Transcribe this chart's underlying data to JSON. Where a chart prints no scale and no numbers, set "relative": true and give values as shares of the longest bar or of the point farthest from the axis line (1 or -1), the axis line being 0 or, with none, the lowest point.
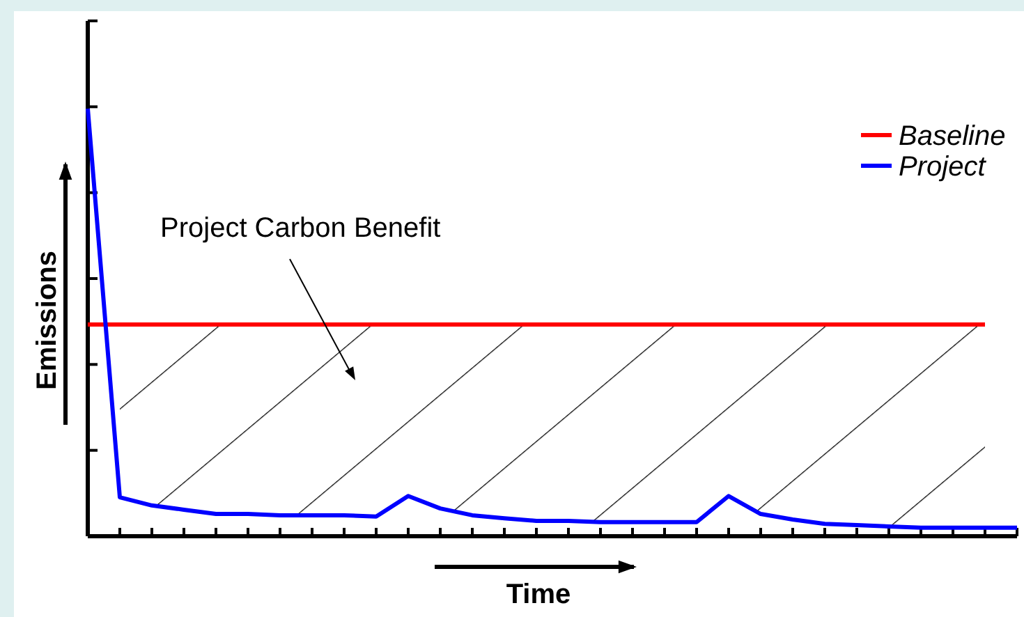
{
  "chart_data": {
    "type": "line",
    "relative": true,
    "xlabel": "Time",
    "ylabel": "Emissions",
    "legend": "top right",
    "marker": "none",
    "line_style": "solid",
    "annotations": [
      "Project Carbon Benefit"
    ],
    "categories": [
      null,
      null,
      null,
      null,
      null,
      null,
      null,
      null,
      null,
      null,
      null,
      null,
      null,
      null,
      null,
      null,
      null,
      null,
      null,
      null,
      null,
      null,
      null,
      null,
      null,
      null,
      null,
      null,
      null,
      null
    ],
    "series": [
      {
        "name": "Baseline",
        "color": "#ff0000",
        "values": [
          0.495,
          0.495,
          0.495,
          0.495,
          0.495,
          0.495,
          0.495,
          0.495,
          0.495,
          0.495,
          0.495,
          0.495,
          0.495,
          0.495,
          0.495,
          0.495,
          0.495,
          0.495,
          0.495,
          0.495,
          0.495,
          0.495,
          0.495,
          0.495,
          0.495,
          0.495,
          0.495,
          0.495,
          0.495,
          null
        ]
      },
      {
        "name": "Project",
        "color": "#0000ff",
        "values": [
          1,
          0.091,
          0.072,
          0.062,
          0.052,
          0.052,
          0.049,
          0.049,
          0.049,
          0.046,
          0.094,
          0.065,
          0.049,
          0.042,
          0.036,
          0.036,
          0.033,
          0.033,
          0.033,
          0.033,
          0.094,
          0.052,
          0.039,
          0.029,
          0.026,
          0.023,
          0.02,
          0.02,
          0.02,
          0.02
        ]
      }
    ]
  }
}
